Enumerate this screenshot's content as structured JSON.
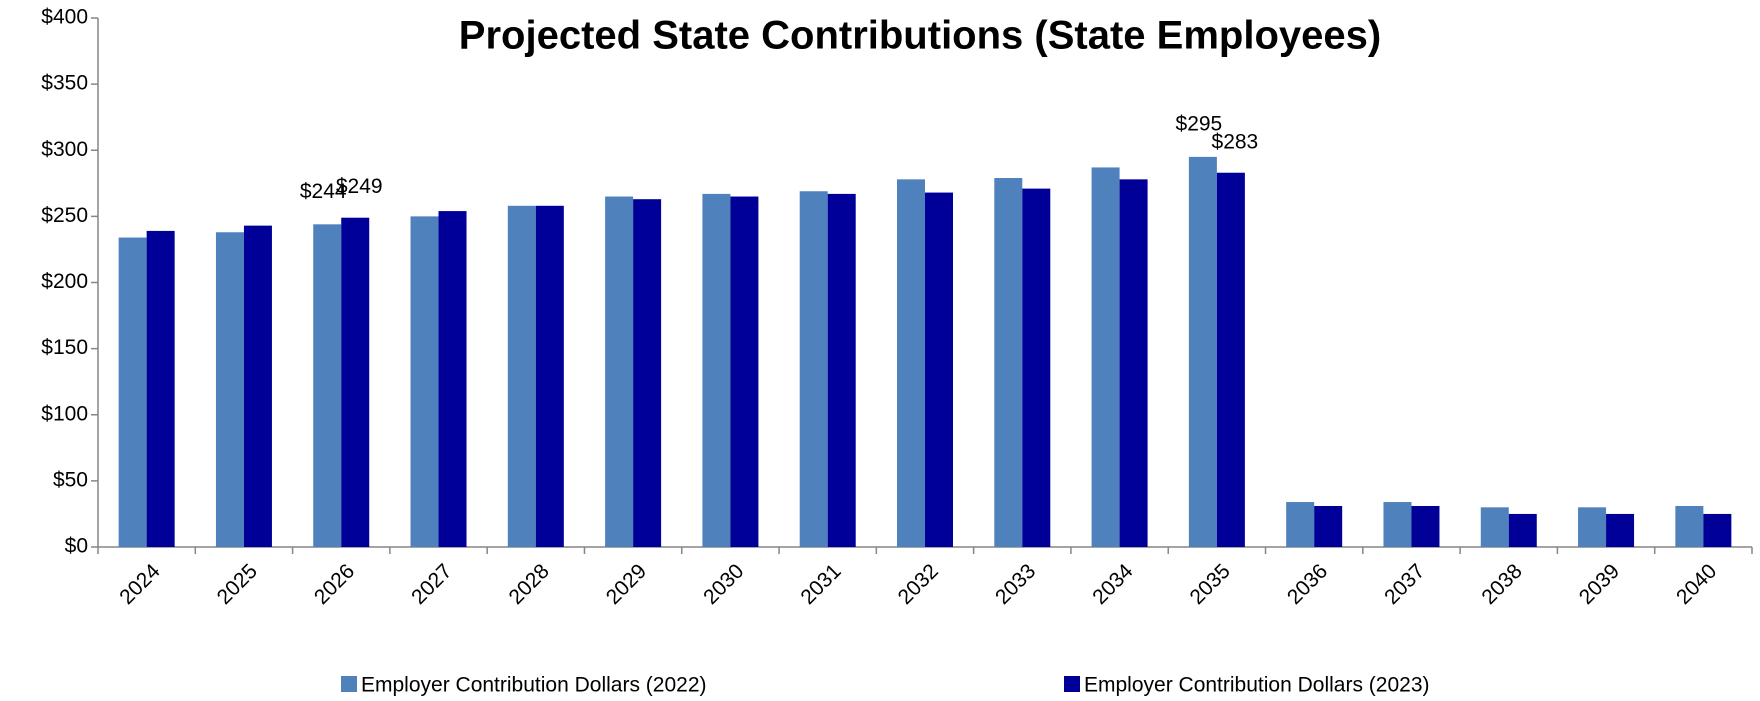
{
  "chart_data": {
    "type": "bar",
    "title": "Projected State Contributions (State Employees)",
    "categories": [
      "2024",
      "2025",
      "2026",
      "2027",
      "2028",
      "2029",
      "2030",
      "2031",
      "2032",
      "2033",
      "2034",
      "2035",
      "2036",
      "2037",
      "2038",
      "2039",
      "2040"
    ],
    "series": [
      {
        "name": "Employer Contribution Dollars (2022)",
        "color": "#4f81bd",
        "values": [
          234,
          238,
          244,
          250,
          258,
          265,
          267,
          269,
          278,
          279,
          287,
          295,
          34,
          34,
          30,
          30,
          31
        ],
        "value_labels": [
          null,
          null,
          "$244",
          null,
          null,
          null,
          null,
          null,
          null,
          null,
          null,
          "$295",
          null,
          null,
          null,
          null,
          null
        ]
      },
      {
        "name": "Employer Contribution Dollars (2023)",
        "color": "#000099",
        "values": [
          239,
          243,
          249,
          254,
          258,
          263,
          265,
          267,
          268,
          271,
          278,
          283,
          31,
          31,
          25,
          25,
          25
        ],
        "value_labels": [
          null,
          null,
          "$249",
          null,
          null,
          null,
          null,
          null,
          null,
          null,
          null,
          "$283",
          null,
          null,
          null,
          null,
          null
        ]
      }
    ],
    "ylim": [
      0,
      400
    ],
    "yticks": [
      {
        "value": 0,
        "label": "$0"
      },
      {
        "value": 50,
        "label": "$50"
      },
      {
        "value": 100,
        "label": "$100"
      },
      {
        "value": 150,
        "label": "$150"
      },
      {
        "value": 200,
        "label": "$200"
      },
      {
        "value": 250,
        "label": "$250"
      },
      {
        "value": 300,
        "label": "$300"
      },
      {
        "value": 350,
        "label": "$350"
      },
      {
        "value": 400,
        "label": "$400"
      }
    ],
    "legend": "bottom"
  }
}
